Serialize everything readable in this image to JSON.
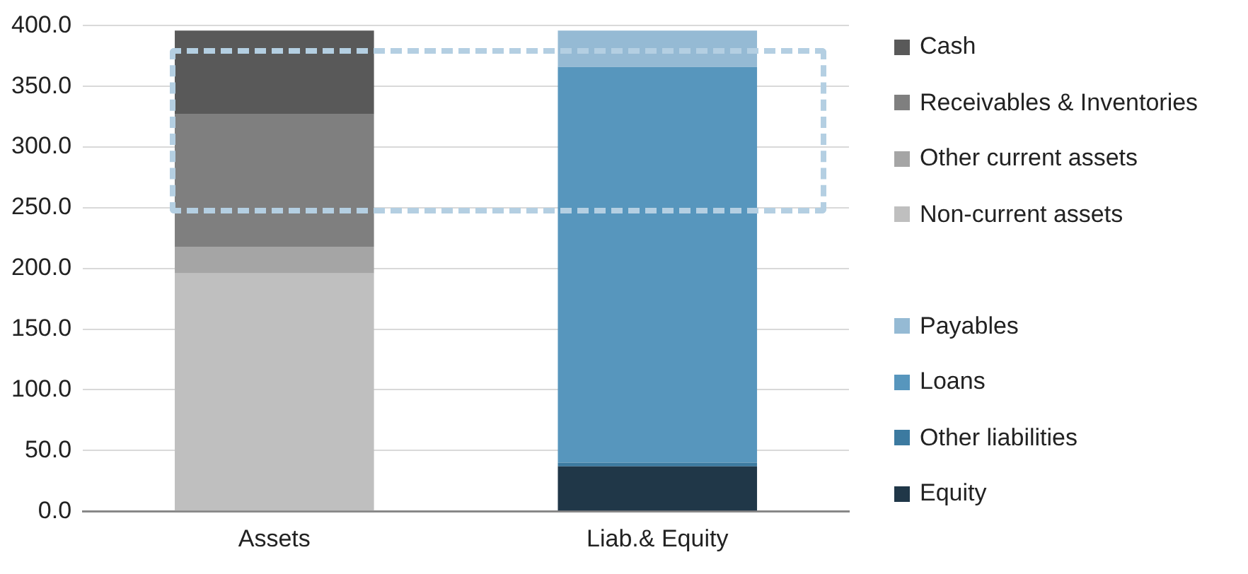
{
  "chart_data": {
    "type": "bar",
    "stacked": true,
    "categories": [
      "Assets",
      "Liab.& Equity"
    ],
    "series": [
      {
        "name": "Non-current assets",
        "color": "#bfbfbf",
        "values": [
          196,
          null
        ]
      },
      {
        "name": "Other current assets",
        "color": "#a5a5a5",
        "values": [
          22,
          null
        ]
      },
      {
        "name": "Receivables & Inventories",
        "color": "#7f7f7f",
        "values": [
          109,
          null
        ]
      },
      {
        "name": "Cash",
        "color": "#595959",
        "values": [
          69,
          null
        ]
      },
      {
        "name": "Equity",
        "color": "#203748",
        "values": [
          null,
          37
        ]
      },
      {
        "name": "Other liabilities",
        "color": "#3c7aa0",
        "values": [
          null,
          3
        ]
      },
      {
        "name": "Loans",
        "color": "#5796bd",
        "values": [
          null,
          326
        ]
      },
      {
        "name": "Payables",
        "color": "#95bad4",
        "values": [
          null,
          30
        ]
      }
    ],
    "ylim": [
      0,
      400
    ],
    "yticks": [
      {
        "value": 0,
        "label": "0.0"
      },
      {
        "value": 50,
        "label": "50.0"
      },
      {
        "value": 100,
        "label": "100.0"
      },
      {
        "value": 150,
        "label": "150.0"
      },
      {
        "value": 200,
        "label": "200.0"
      },
      {
        "value": 250,
        "label": "250.0"
      },
      {
        "value": 300,
        "label": "300.0"
      },
      {
        "value": 350,
        "label": "350.0"
      },
      {
        "value": 400,
        "label": "400.0"
      }
    ],
    "grid": "y",
    "legend": "right"
  }
}
